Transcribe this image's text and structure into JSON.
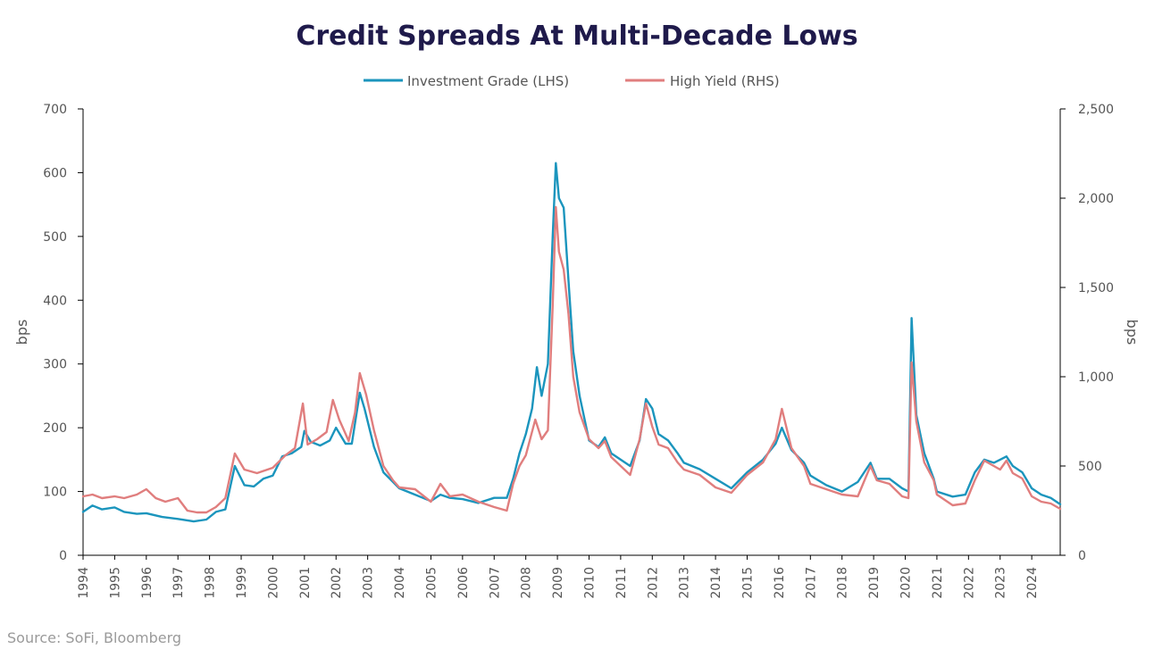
{
  "source_text": "Source: SoFi, Bloomberg",
  "chart_data": {
    "type": "line",
    "title": "Credit Spreads At Multi-Decade Lows",
    "legend_position": "top-center",
    "grid": false,
    "y_left": {
      "label": "bps",
      "range": [
        0,
        700
      ],
      "ticks": [
        0,
        100,
        200,
        300,
        400,
        500,
        600,
        700
      ],
      "tick_labels": [
        "0",
        "100",
        "200",
        "300",
        "400",
        "500",
        "600",
        "700"
      ]
    },
    "y_right": {
      "label": "bps",
      "range": [
        0,
        2500
      ],
      "ticks": [
        0,
        500,
        1000,
        1500,
        2000,
        2500
      ],
      "tick_labels": [
        "0",
        "500",
        "1,000",
        "1,500",
        "2,000",
        "2,500"
      ]
    },
    "x": {
      "range": [
        1994,
        2024.9
      ],
      "ticks": [
        1994,
        1995,
        1996,
        1997,
        1998,
        1999,
        2000,
        2001,
        2002,
        2003,
        2004,
        2005,
        2006,
        2007,
        2008,
        2009,
        2010,
        2011,
        2012,
        2013,
        2014,
        2015,
        2016,
        2017,
        2018,
        2019,
        2020,
        2021,
        2022,
        2023,
        2024
      ],
      "tick_labels": [
        "1994",
        "1995",
        "1996",
        "1997",
        "1998",
        "1999",
        "2000",
        "2001",
        "2002",
        "2003",
        "2004",
        "2005",
        "2006",
        "2007",
        "2008",
        "2009",
        "2010",
        "2011",
        "2012",
        "2013",
        "2014",
        "2015",
        "2016",
        "2017",
        "2018",
        "2019",
        "2020",
        "2021",
        "2022",
        "2023",
        "2024"
      ]
    },
    "series": [
      {
        "name": "Investment Grade (LHS)",
        "axis": "left",
        "color": "#1b95bd",
        "points": [
          [
            1994.0,
            68
          ],
          [
            1994.3,
            78
          ],
          [
            1994.6,
            72
          ],
          [
            1995.0,
            75
          ],
          [
            1995.3,
            68
          ],
          [
            1995.7,
            65
          ],
          [
            1996.0,
            66
          ],
          [
            1996.5,
            60
          ],
          [
            1997.0,
            57
          ],
          [
            1997.5,
            53
          ],
          [
            1997.9,
            56
          ],
          [
            1998.2,
            68
          ],
          [
            1998.5,
            72
          ],
          [
            1998.8,
            140
          ],
          [
            1999.1,
            110
          ],
          [
            1999.4,
            108
          ],
          [
            1999.7,
            120
          ],
          [
            2000.0,
            125
          ],
          [
            2000.3,
            155
          ],
          [
            2000.6,
            160
          ],
          [
            2000.9,
            170
          ],
          [
            2001.0,
            195
          ],
          [
            2001.2,
            178
          ],
          [
            2001.5,
            172
          ],
          [
            2001.8,
            180
          ],
          [
            2002.0,
            200
          ],
          [
            2002.3,
            175
          ],
          [
            2002.5,
            175
          ],
          [
            2002.75,
            255
          ],
          [
            2002.9,
            230
          ],
          [
            2003.2,
            170
          ],
          [
            2003.5,
            130
          ],
          [
            2003.8,
            115
          ],
          [
            2004.0,
            105
          ],
          [
            2004.5,
            95
          ],
          [
            2005.0,
            85
          ],
          [
            2005.3,
            95
          ],
          [
            2005.6,
            90
          ],
          [
            2006.0,
            88
          ],
          [
            2006.5,
            82
          ],
          [
            2007.0,
            90
          ],
          [
            2007.4,
            90
          ],
          [
            2007.6,
            120
          ],
          [
            2007.8,
            160
          ],
          [
            2008.0,
            190
          ],
          [
            2008.2,
            230
          ],
          [
            2008.35,
            295
          ],
          [
            2008.5,
            250
          ],
          [
            2008.7,
            300
          ],
          [
            2008.85,
            500
          ],
          [
            2008.95,
            615
          ],
          [
            2009.05,
            560
          ],
          [
            2009.2,
            545
          ],
          [
            2009.35,
            430
          ],
          [
            2009.5,
            320
          ],
          [
            2009.7,
            250
          ],
          [
            2010.0,
            180
          ],
          [
            2010.3,
            170
          ],
          [
            2010.5,
            185
          ],
          [
            2010.7,
            160
          ],
          [
            2011.0,
            150
          ],
          [
            2011.3,
            140
          ],
          [
            2011.6,
            180
          ],
          [
            2011.8,
            245
          ],
          [
            2012.0,
            230
          ],
          [
            2012.2,
            190
          ],
          [
            2012.5,
            180
          ],
          [
            2012.8,
            160
          ],
          [
            2013.0,
            145
          ],
          [
            2013.5,
            135
          ],
          [
            2014.0,
            120
          ],
          [
            2014.5,
            105
          ],
          [
            2015.0,
            130
          ],
          [
            2015.5,
            150
          ],
          [
            2015.9,
            175
          ],
          [
            2016.1,
            200
          ],
          [
            2016.4,
            165
          ],
          [
            2016.8,
            145
          ],
          [
            2017.0,
            125
          ],
          [
            2017.5,
            110
          ],
          [
            2018.0,
            100
          ],
          [
            2018.5,
            115
          ],
          [
            2018.9,
            145
          ],
          [
            2019.1,
            120
          ],
          [
            2019.5,
            120
          ],
          [
            2019.9,
            105
          ],
          [
            2020.1,
            100
          ],
          [
            2020.2,
            372
          ],
          [
            2020.35,
            220
          ],
          [
            2020.6,
            160
          ],
          [
            2020.9,
            120
          ],
          [
            2021.0,
            100
          ],
          [
            2021.5,
            92
          ],
          [
            2021.9,
            95
          ],
          [
            2022.2,
            130
          ],
          [
            2022.5,
            150
          ],
          [
            2022.8,
            145
          ],
          [
            2023.0,
            150
          ],
          [
            2023.2,
            155
          ],
          [
            2023.4,
            140
          ],
          [
            2023.7,
            130
          ],
          [
            2024.0,
            105
          ],
          [
            2024.3,
            95
          ],
          [
            2024.6,
            90
          ],
          [
            2024.9,
            80
          ]
        ]
      },
      {
        "name": "High Yield (RHS)",
        "axis": "right",
        "color": "#e07e7e",
        "points": [
          [
            1994.0,
            330
          ],
          [
            1994.3,
            340
          ],
          [
            1994.6,
            320
          ],
          [
            1995.0,
            330
          ],
          [
            1995.3,
            320
          ],
          [
            1995.7,
            340
          ],
          [
            1996.0,
            370
          ],
          [
            1996.3,
            320
          ],
          [
            1996.6,
            300
          ],
          [
            1997.0,
            320
          ],
          [
            1997.3,
            250
          ],
          [
            1997.6,
            240
          ],
          [
            1997.9,
            240
          ],
          [
            1998.2,
            270
          ],
          [
            1998.5,
            320
          ],
          [
            1998.8,
            570
          ],
          [
            1999.1,
            480
          ],
          [
            1999.5,
            460
          ],
          [
            2000.0,
            490
          ],
          [
            2000.4,
            560
          ],
          [
            2000.7,
            600
          ],
          [
            2000.95,
            850
          ],
          [
            2001.1,
            620
          ],
          [
            2001.4,
            650
          ],
          [
            2001.7,
            690
          ],
          [
            2001.9,
            870
          ],
          [
            2002.1,
            760
          ],
          [
            2002.4,
            640
          ],
          [
            2002.6,
            800
          ],
          [
            2002.75,
            1020
          ],
          [
            2002.95,
            900
          ],
          [
            2003.2,
            700
          ],
          [
            2003.5,
            500
          ],
          [
            2003.8,
            420
          ],
          [
            2004.0,
            380
          ],
          [
            2004.5,
            370
          ],
          [
            2005.0,
            300
          ],
          [
            2005.3,
            400
          ],
          [
            2005.6,
            330
          ],
          [
            2006.0,
            340
          ],
          [
            2006.5,
            300
          ],
          [
            2007.0,
            270
          ],
          [
            2007.4,
            250
          ],
          [
            2007.6,
            400
          ],
          [
            2007.8,
            500
          ],
          [
            2008.0,
            560
          ],
          [
            2008.3,
            760
          ],
          [
            2008.5,
            650
          ],
          [
            2008.7,
            700
          ],
          [
            2008.85,
            1400
          ],
          [
            2008.95,
            1950
          ],
          [
            2009.05,
            1700
          ],
          [
            2009.2,
            1600
          ],
          [
            2009.35,
            1350
          ],
          [
            2009.5,
            1000
          ],
          [
            2009.7,
            800
          ],
          [
            2010.0,
            650
          ],
          [
            2010.3,
            600
          ],
          [
            2010.5,
            640
          ],
          [
            2010.7,
            550
          ],
          [
            2011.0,
            500
          ],
          [
            2011.3,
            450
          ],
          [
            2011.6,
            650
          ],
          [
            2011.8,
            850
          ],
          [
            2012.0,
            720
          ],
          [
            2012.2,
            620
          ],
          [
            2012.5,
            600
          ],
          [
            2012.8,
            520
          ],
          [
            2013.0,
            480
          ],
          [
            2013.5,
            450
          ],
          [
            2014.0,
            380
          ],
          [
            2014.5,
            350
          ],
          [
            2015.0,
            450
          ],
          [
            2015.5,
            520
          ],
          [
            2015.9,
            650
          ],
          [
            2016.1,
            820
          ],
          [
            2016.4,
            600
          ],
          [
            2016.8,
            500
          ],
          [
            2017.0,
            400
          ],
          [
            2017.5,
            370
          ],
          [
            2018.0,
            340
          ],
          [
            2018.5,
            330
          ],
          [
            2018.9,
            500
          ],
          [
            2019.1,
            420
          ],
          [
            2019.5,
            400
          ],
          [
            2019.9,
            330
          ],
          [
            2020.1,
            320
          ],
          [
            2020.2,
            1080
          ],
          [
            2020.35,
            750
          ],
          [
            2020.6,
            520
          ],
          [
            2020.9,
            420
          ],
          [
            2021.0,
            340
          ],
          [
            2021.5,
            280
          ],
          [
            2021.9,
            290
          ],
          [
            2022.2,
            420
          ],
          [
            2022.5,
            530
          ],
          [
            2022.8,
            500
          ],
          [
            2023.0,
            480
          ],
          [
            2023.2,
            530
          ],
          [
            2023.4,
            460
          ],
          [
            2023.7,
            430
          ],
          [
            2024.0,
            330
          ],
          [
            2024.3,
            300
          ],
          [
            2024.6,
            290
          ],
          [
            2024.9,
            260
          ]
        ]
      }
    ]
  }
}
